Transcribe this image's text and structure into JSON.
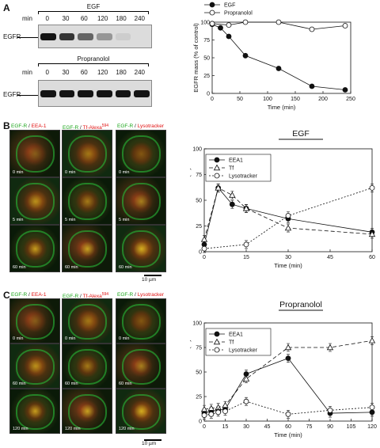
{
  "panelA": {
    "letter": "A",
    "blot1": {
      "treatment": "EGF",
      "min_label": "min",
      "times": [
        "0",
        "30",
        "60",
        "120",
        "180",
        "240"
      ],
      "row_label": "EGFR"
    },
    "blot2": {
      "treatment": "Propranolol",
      "min_label": "min",
      "times": [
        "0",
        "30",
        "60",
        "120",
        "180",
        "240"
      ],
      "row_label": "EGFR"
    },
    "band_intensities_egf": [
      1.0,
      0.85,
      0.62,
      0.38,
      0.12,
      0.05
    ],
    "band_intensities_prop": [
      1.0,
      1.0,
      1.0,
      1.0,
      1.0,
      1.0
    ]
  },
  "panelB": {
    "letter": "B",
    "col_headers": [
      {
        "green": "EGF-R",
        "sep": " / ",
        "red": "EEA-1",
        "sup": ""
      },
      {
        "green": "EGF-R",
        "sep": " / ",
        "red": "Tf-Alexa",
        "sup": "594"
      },
      {
        "green": "EGF-R",
        "sep": " / ",
        "red": "Lysotracker",
        "sup": ""
      }
    ],
    "time_labels": [
      "0 min",
      "0 min",
      "0 min",
      "5 min",
      "5 min",
      "5 min",
      "60 min",
      "60 min",
      "60 min"
    ],
    "scale_bar": "10 µm"
  },
  "panelC": {
    "letter": "C",
    "col_headers": [
      {
        "green": "EGF-R",
        "sep": " / ",
        "red": "EEA-1",
        "sup": ""
      },
      {
        "green": "EGF-R",
        "sep": " / ",
        "red": "Tf-Alexa",
        "sup": "594"
      },
      {
        "green": "EGF-R",
        "sep": " / ",
        "red": "Lysotracker",
        "sup": ""
      }
    ],
    "time_labels": [
      "0 min",
      "0 min",
      "0 min",
      "60 min",
      "60 min",
      "60 min",
      "120 min",
      "120 min",
      "120 min"
    ],
    "scale_bar": "10 µm"
  },
  "chart_data": [
    {
      "type": "line",
      "title": "",
      "xlabel": "Time (min)",
      "ylabel": "EGFR mass (% of control)",
      "xlim": [
        0,
        250
      ],
      "ylim": [
        0,
        100
      ],
      "xticks": [
        0,
        50,
        100,
        150,
        200,
        250
      ],
      "yticks": [
        0,
        25,
        50,
        75,
        100
      ],
      "legend_position": "top",
      "series": [
        {
          "name": "EGF",
          "marker": "filled",
          "dash": "solid",
          "x": [
            0,
            15,
            30,
            60,
            120,
            180,
            240
          ],
          "y": [
            97,
            92,
            80,
            53,
            35,
            10,
            5
          ]
        },
        {
          "name": "Propranolol",
          "marker": "open",
          "dash": "solid",
          "x": [
            0,
            30,
            60,
            120,
            180,
            240
          ],
          "y": [
            98,
            96,
            100,
            100,
            90,
            95
          ]
        }
      ]
    },
    {
      "type": "line",
      "title": "EGF",
      "xlabel": "Time (min)",
      "ylabel": "EGFR colocalization (%)",
      "xlim": [
        0,
        60
      ],
      "ylim": [
        0,
        100
      ],
      "xticks": [
        0,
        15,
        30,
        45,
        60
      ],
      "yticks": [
        0,
        25,
        50,
        75,
        100
      ],
      "legend_position": "top-left",
      "series": [
        {
          "name": "EEA1",
          "marker": "filled",
          "dash": "solid",
          "x": [
            0,
            5,
            10,
            15,
            30,
            60
          ],
          "y": [
            7,
            62,
            46,
            42,
            32,
            19
          ]
        },
        {
          "name": "Tf",
          "marker": "triangle",
          "dash": "long",
          "x": [
            0,
            5,
            10,
            15,
            30,
            60
          ],
          "y": [
            12,
            62,
            55,
            42,
            23,
            17
          ]
        },
        {
          "name": "Lysotracker",
          "marker": "open",
          "dash": "short",
          "x": [
            0,
            15,
            30,
            60
          ],
          "y": [
            3,
            7,
            35,
            62
          ]
        }
      ]
    },
    {
      "type": "line",
      "title": "Propranolol",
      "xlabel": "Time (min)",
      "ylabel": "EGFR colocalization (%)",
      "xlim": [
        0,
        120
      ],
      "ylim": [
        0,
        100
      ],
      "xticks": [
        0,
        15,
        30,
        45,
        60,
        75,
        90,
        105,
        120
      ],
      "yticks": [
        0,
        25,
        50,
        75,
        100
      ],
      "legend_position": "top-left",
      "series": [
        {
          "name": "EEA1",
          "marker": "filled",
          "dash": "solid",
          "x": [
            0,
            5,
            10,
            15,
            30,
            60,
            90,
            120
          ],
          "y": [
            8,
            10,
            11,
            12,
            48,
            64,
            8,
            9
          ]
        },
        {
          "name": "Tf",
          "marker": "triangle",
          "dash": "long",
          "x": [
            0,
            5,
            10,
            15,
            30,
            60,
            90,
            120
          ],
          "y": [
            12,
            13,
            14,
            16,
            43,
            75,
            75,
            82
          ]
        },
        {
          "name": "Lysotracker",
          "marker": "open",
          "dash": "short",
          "x": [
            0,
            5,
            10,
            15,
            30,
            60,
            90,
            120
          ],
          "y": [
            6,
            7,
            9,
            10,
            20,
            7,
            11,
            14
          ]
        }
      ]
    }
  ]
}
